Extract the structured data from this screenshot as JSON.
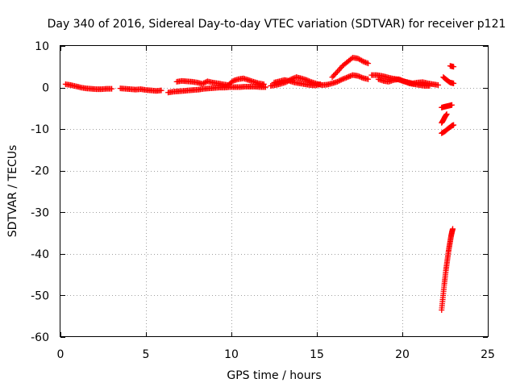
{
  "chart_data": {
    "type": "scatter",
    "title": "Day 340 of 2016, Sidereal Day-to-day VTEC variation (SDTVAR) for receiver p121",
    "xlabel": "GPS time / hours",
    "ylabel": "SDTVAR / TECUs",
    "xlim": [
      0,
      25
    ],
    "ylim": [
      -60,
      10
    ],
    "xticks": [
      "0",
      "5",
      "10",
      "15",
      "20",
      "25"
    ],
    "yticks": [
      "10",
      "0",
      "-10",
      "-20",
      "-30",
      "-40",
      "-50",
      "-60"
    ],
    "grid": true,
    "marker": "plus",
    "color": "#ff0000",
    "segments": [
      {
        "name": "base-1",
        "points": [
          [
            0.3,
            0.8
          ],
          [
            0.6,
            0.6
          ],
          [
            0.9,
            0.3
          ],
          [
            1.2,
            0.0
          ],
          [
            1.5,
            -0.2
          ],
          [
            1.8,
            -0.3
          ],
          [
            2.1,
            -0.4
          ],
          [
            2.4,
            -0.4
          ],
          [
            2.7,
            -0.3
          ],
          [
            3.0,
            -0.3
          ]
        ]
      },
      {
        "name": "base-2",
        "points": [
          [
            3.5,
            -0.2
          ],
          [
            3.8,
            -0.3
          ],
          [
            4.1,
            -0.4
          ],
          [
            4.4,
            -0.5
          ],
          [
            4.7,
            -0.4
          ],
          [
            5.0,
            -0.6
          ],
          [
            5.3,
            -0.7
          ],
          [
            5.6,
            -0.8
          ],
          [
            5.9,
            -0.7
          ]
        ]
      },
      {
        "name": "lower-arc",
        "points": [
          [
            6.3,
            -1.2
          ],
          [
            6.6,
            -1.0
          ],
          [
            6.9,
            -0.9
          ],
          [
            7.2,
            -0.8
          ],
          [
            7.5,
            -0.7
          ],
          [
            7.8,
            -0.6
          ],
          [
            8.1,
            -0.5
          ],
          [
            8.4,
            -0.3
          ],
          [
            8.7,
            -0.2
          ],
          [
            9.0,
            -0.1
          ],
          [
            9.3,
            0.0
          ],
          [
            9.6,
            0.0
          ],
          [
            9.9,
            0.1
          ],
          [
            10.2,
            0.1
          ],
          [
            10.5,
            0.1
          ],
          [
            10.8,
            0.2
          ],
          [
            11.1,
            0.2
          ],
          [
            11.4,
            0.2
          ],
          [
            11.7,
            0.1
          ],
          [
            12.0,
            0.1
          ]
        ]
      },
      {
        "name": "upper-arc-1",
        "points": [
          [
            6.8,
            1.4
          ],
          [
            7.1,
            1.6
          ],
          [
            7.4,
            1.5
          ],
          [
            7.7,
            1.4
          ],
          [
            8.0,
            1.2
          ],
          [
            8.3,
            0.9
          ],
          [
            8.6,
            1.5
          ],
          [
            8.9,
            1.2
          ],
          [
            9.2,
            1.0
          ],
          [
            9.5,
            0.8
          ],
          [
            9.8,
            0.6
          ],
          [
            10.1,
            1.6
          ],
          [
            10.4,
            2.0
          ],
          [
            10.7,
            2.2
          ],
          [
            11.0,
            1.8
          ],
          [
            11.3,
            1.4
          ],
          [
            11.6,
            1.0
          ],
          [
            11.9,
            0.8
          ]
        ]
      },
      {
        "name": "mid-1",
        "points": [
          [
            12.3,
            0.4
          ],
          [
            12.6,
            0.6
          ],
          [
            12.9,
            0.9
          ],
          [
            13.2,
            1.3
          ],
          [
            13.5,
            2.0
          ],
          [
            13.8,
            2.5
          ],
          [
            14.1,
            2.2
          ],
          [
            14.4,
            1.8
          ],
          [
            14.7,
            1.3
          ],
          [
            15.0,
            0.9
          ],
          [
            15.3,
            0.6
          ],
          [
            15.6,
            0.7
          ],
          [
            15.9,
            1.0
          ],
          [
            16.2,
            1.4
          ],
          [
            16.5,
            2.0
          ],
          [
            16.8,
            2.5
          ],
          [
            17.1,
            3.0
          ],
          [
            17.4,
            2.8
          ],
          [
            17.7,
            2.3
          ],
          [
            18.0,
            2.0
          ]
        ]
      },
      {
        "name": "mid-2",
        "points": [
          [
            12.5,
            1.2
          ],
          [
            12.8,
            1.5
          ],
          [
            13.1,
            1.8
          ],
          [
            13.4,
            1.6
          ],
          [
            13.7,
            1.2
          ],
          [
            14.0,
            1.0
          ],
          [
            14.3,
            0.8
          ],
          [
            14.6,
            0.6
          ],
          [
            14.9,
            0.5
          ],
          [
            15.2,
            0.8
          ]
        ]
      },
      {
        "name": "peak",
        "points": [
          [
            15.9,
            2.5
          ],
          [
            16.2,
            3.8
          ],
          [
            16.5,
            5.2
          ],
          [
            16.8,
            6.2
          ],
          [
            17.1,
            7.2
          ],
          [
            17.4,
            7.0
          ],
          [
            17.7,
            6.3
          ],
          [
            18.0,
            5.8
          ]
        ]
      },
      {
        "name": "late-1",
        "points": [
          [
            18.2,
            3.0
          ],
          [
            18.5,
            3.0
          ],
          [
            18.8,
            2.8
          ],
          [
            19.1,
            2.5
          ],
          [
            19.4,
            2.2
          ],
          [
            19.7,
            2.0
          ],
          [
            20.0,
            1.6
          ],
          [
            20.3,
            1.3
          ],
          [
            20.6,
            1.0
          ],
          [
            20.9,
            1.2
          ],
          [
            21.2,
            1.3
          ],
          [
            21.5,
            1.0
          ],
          [
            21.8,
            0.8
          ],
          [
            22.1,
            0.6
          ]
        ]
      },
      {
        "name": "late-2",
        "points": [
          [
            18.6,
            2.0
          ],
          [
            18.9,
            1.6
          ],
          [
            19.2,
            1.4
          ],
          [
            19.5,
            1.8
          ],
          [
            19.8,
            2.0
          ],
          [
            20.1,
            1.5
          ],
          [
            20.4,
            1.0
          ],
          [
            20.7,
            0.8
          ],
          [
            21.0,
            0.6
          ],
          [
            21.3,
            0.4
          ],
          [
            21.6,
            0.4
          ]
        ]
      },
      {
        "name": "end-upper",
        "points": [
          [
            22.4,
            2.5
          ],
          [
            22.6,
            1.8
          ],
          [
            22.8,
            1.2
          ],
          [
            23.0,
            1.0
          ]
        ]
      },
      {
        "name": "end-top",
        "points": [
          [
            22.8,
            5.2
          ],
          [
            23.0,
            5.0
          ]
        ]
      },
      {
        "name": "end-minus5",
        "points": [
          [
            22.3,
            -4.8
          ],
          [
            22.5,
            -4.6
          ],
          [
            22.7,
            -4.4
          ],
          [
            22.9,
            -4.2
          ]
        ]
      },
      {
        "name": "end-minus8",
        "points": [
          [
            22.3,
            -8.5
          ],
          [
            22.4,
            -7.8
          ],
          [
            22.5,
            -7.0
          ],
          [
            22.6,
            -6.4
          ]
        ]
      },
      {
        "name": "end-minus10",
        "points": [
          [
            22.3,
            -11.0
          ],
          [
            22.5,
            -10.5
          ],
          [
            22.7,
            -9.8
          ],
          [
            22.9,
            -9.2
          ],
          [
            23.0,
            -9.0
          ]
        ]
      },
      {
        "name": "plunge",
        "points": [
          [
            22.3,
            -53.5
          ],
          [
            22.35,
            -51.5
          ],
          [
            22.4,
            -49.5
          ],
          [
            22.45,
            -47.5
          ],
          [
            22.5,
            -45.8
          ],
          [
            22.55,
            -44.0
          ],
          [
            22.6,
            -42.5
          ],
          [
            22.65,
            -41.0
          ],
          [
            22.7,
            -39.5
          ],
          [
            22.75,
            -38.2
          ],
          [
            22.8,
            -37.0
          ],
          [
            22.85,
            -35.8
          ],
          [
            22.9,
            -34.8
          ],
          [
            22.95,
            -34.0
          ]
        ]
      }
    ]
  }
}
